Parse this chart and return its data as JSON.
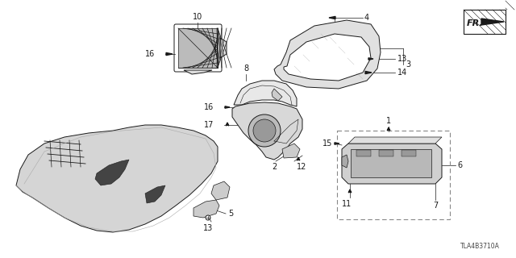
{
  "bg_color": "#ffffff",
  "diagram_code": "TLA4B3710A",
  "dark": "#1a1a1a",
  "gray": "#888888",
  "lightgray": "#cccccc",
  "midgray": "#999999",
  "font_size": 7
}
